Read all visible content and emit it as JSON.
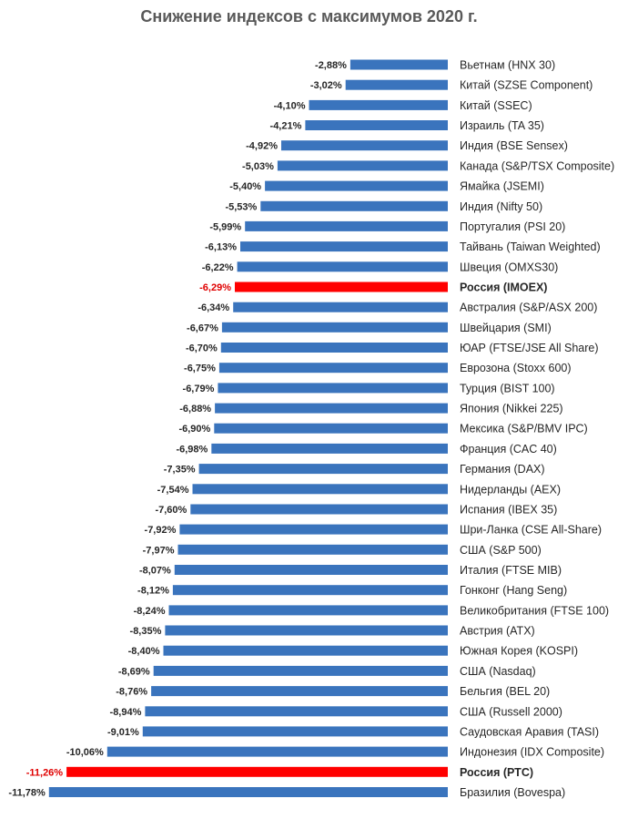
{
  "chart_data": {
    "type": "bar",
    "orientation": "horizontal",
    "title": "Снижение индексов с максимумов 2020 г.",
    "colors": {
      "default": "#3a74bd",
      "highlight": "#ff0000"
    },
    "highlight": [
      "Россия (IMOEX)",
      "Россия (РТС)"
    ],
    "categories": [
      "Вьетнам (HNX 30)",
      "Китай (SZSE Component)",
      "Китай (SSEC)",
      "Израиль (TA 35)",
      "Индия (BSE Sensex)",
      "Канада (S&P/TSX Composite)",
      "Ямайка (JSEMI)",
      "Индия (Nifty 50)",
      "Португалия (PSI 20)",
      "Тайвань (Taiwan Weighted)",
      "Швеция (OMXS30)",
      "Россия (IMOEX)",
      "Австралия (S&P/ASX 200)",
      "Швейцария (SMI)",
      "ЮАР (FTSE/JSE All Share)",
      "Еврозона (Stoxx 600)",
      "Турция (BIST 100)",
      "Япония (Nikkei 225)",
      "Мексика (S&P/BMV IPC)",
      "Франция (CAC 40)",
      "Германия (DAX)",
      "Нидерланды (AEX)",
      "Испания (IBEX 35)",
      "Шри-Ланка (CSE All-Share)",
      "США (S&P 500)",
      "Италия (FTSE MIB)",
      "Гонконг (Hang Seng)",
      "Великобритания (FTSE 100)",
      "Австрия (ATX)",
      "Южная Корея (KOSPI)",
      "США (Nasdaq)",
      "Бельгия (BEL 20)",
      "США (Russell 2000)",
      "Саудовская Аравия (TASI)",
      "Индонезия (IDX Composite)",
      "Россия (РТС)",
      "Бразилия (Bovespa)"
    ],
    "values": [
      -2.88,
      -3.02,
      -4.1,
      -4.21,
      -4.92,
      -5.03,
      -5.4,
      -5.53,
      -5.99,
      -6.13,
      -6.22,
      -6.29,
      -6.34,
      -6.67,
      -6.7,
      -6.75,
      -6.79,
      -6.88,
      -6.9,
      -6.98,
      -7.35,
      -7.54,
      -7.6,
      -7.92,
      -7.97,
      -8.07,
      -8.12,
      -8.24,
      -8.35,
      -8.4,
      -8.69,
      -8.76,
      -8.94,
      -9.01,
      -10.06,
      -11.26,
      -11.78
    ],
    "value_labels": [
      "-2,88%",
      "-3,02%",
      "-4,10%",
      "-4,21%",
      "-4,92%",
      "-5,03%",
      "-5,40%",
      "-5,53%",
      "-5,99%",
      "-6,13%",
      "-6,22%",
      "-6,29%",
      "-6,34%",
      "-6,67%",
      "-6,70%",
      "-6,75%",
      "-6,79%",
      "-6,88%",
      "-6,90%",
      "-6,98%",
      "-7,35%",
      "-7,54%",
      "-7,60%",
      "-7,92%",
      "-7,97%",
      "-8,07%",
      "-8,12%",
      "-8,24%",
      "-8,35%",
      "-8,40%",
      "-8,69%",
      "-8,76%",
      "-8,94%",
      "-9,01%",
      "-10,06%",
      "-11,26%",
      "-11,78%"
    ],
    "grid": false,
    "legend": "none"
  }
}
